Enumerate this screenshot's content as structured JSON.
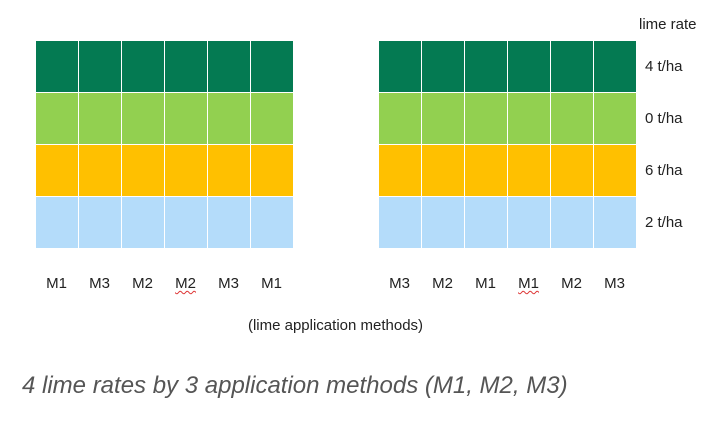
{
  "legend": {
    "title": "lime rate",
    "rates": [
      "4 t/ha",
      "0 t/ha",
      "6 t/ha",
      "2 t/ha"
    ],
    "colors": [
      "#047a52",
      "#92d050",
      "#ffc000",
      "#b4dcfa"
    ]
  },
  "blocks": [
    {
      "methods": [
        "M1",
        "M3",
        "M2",
        "M2",
        "M3",
        "M1"
      ],
      "squiggle_index": 3
    },
    {
      "methods": [
        "M3",
        "M2",
        "M1",
        "M1",
        "M2",
        "M3"
      ],
      "squiggle_index": 3
    }
  ],
  "axis_label": "(lime application methods)",
  "caption": "4 lime rates by 3 application methods (M1, M2, M3)"
}
